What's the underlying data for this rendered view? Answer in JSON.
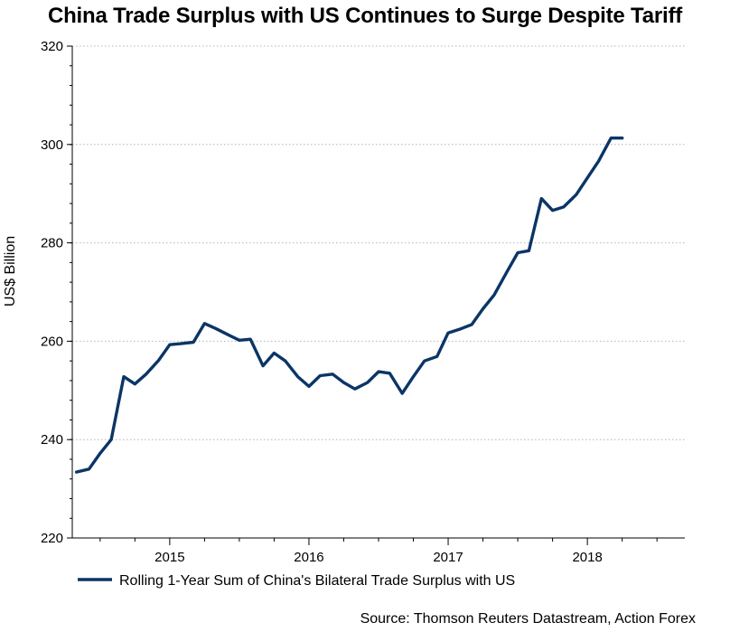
{
  "chart_data": {
    "type": "line",
    "title": "China Trade Surplus with US Continues to Surge Despite Tariff",
    "xlabel": "",
    "ylabel": "US$ Billion",
    "ylim": [
      220,
      320
    ],
    "yticks": [
      220,
      240,
      260,
      280,
      300,
      320
    ],
    "xticks": [
      "2015",
      "2016",
      "2017",
      "2018"
    ],
    "x_start": 2014.3,
    "x_end": 2018.7,
    "grid": true,
    "legend_position": "bottom-left",
    "series": [
      {
        "name": "Rolling 1-Year Sum of China's Bilateral Trade Surplus with US",
        "color": "#0b3566",
        "x": [
          2014.33,
          2014.42,
          2014.5,
          2014.58,
          2014.67,
          2014.75,
          2014.83,
          2014.92,
          2015.0,
          2015.08,
          2015.17,
          2015.25,
          2015.33,
          2015.42,
          2015.5,
          2015.58,
          2015.67,
          2015.75,
          2015.83,
          2015.92,
          2016.0,
          2016.08,
          2016.17,
          2016.25,
          2016.33,
          2016.42,
          2016.5,
          2016.58,
          2016.67,
          2016.75,
          2016.83,
          2016.92,
          2017.0,
          2017.08,
          2017.17,
          2017.25,
          2017.33,
          2017.42,
          2017.5,
          2017.58,
          2017.67,
          2017.75,
          2017.83,
          2017.92,
          2018.0,
          2018.08,
          2018.17,
          2018.25
        ],
        "values": [
          233.4,
          234.0,
          237.2,
          240.0,
          252.8,
          251.3,
          253.3,
          256.1,
          259.3,
          259.5,
          259.8,
          263.6,
          262.6,
          261.3,
          260.2,
          260.4,
          255.0,
          257.6,
          256.0,
          252.8,
          250.8,
          253.0,
          253.3,
          251.6,
          250.3,
          251.6,
          253.8,
          253.5,
          249.4,
          252.8,
          256.0,
          256.9,
          261.7,
          262.4,
          263.4,
          266.6,
          269.4,
          274.0,
          278.0,
          278.4,
          289.0,
          286.6,
          287.3,
          289.8,
          293.2,
          296.6,
          301.3,
          301.3
        ]
      }
    ]
  },
  "source_text": "Source: Thomson Reuters Datastream, Action Forex"
}
